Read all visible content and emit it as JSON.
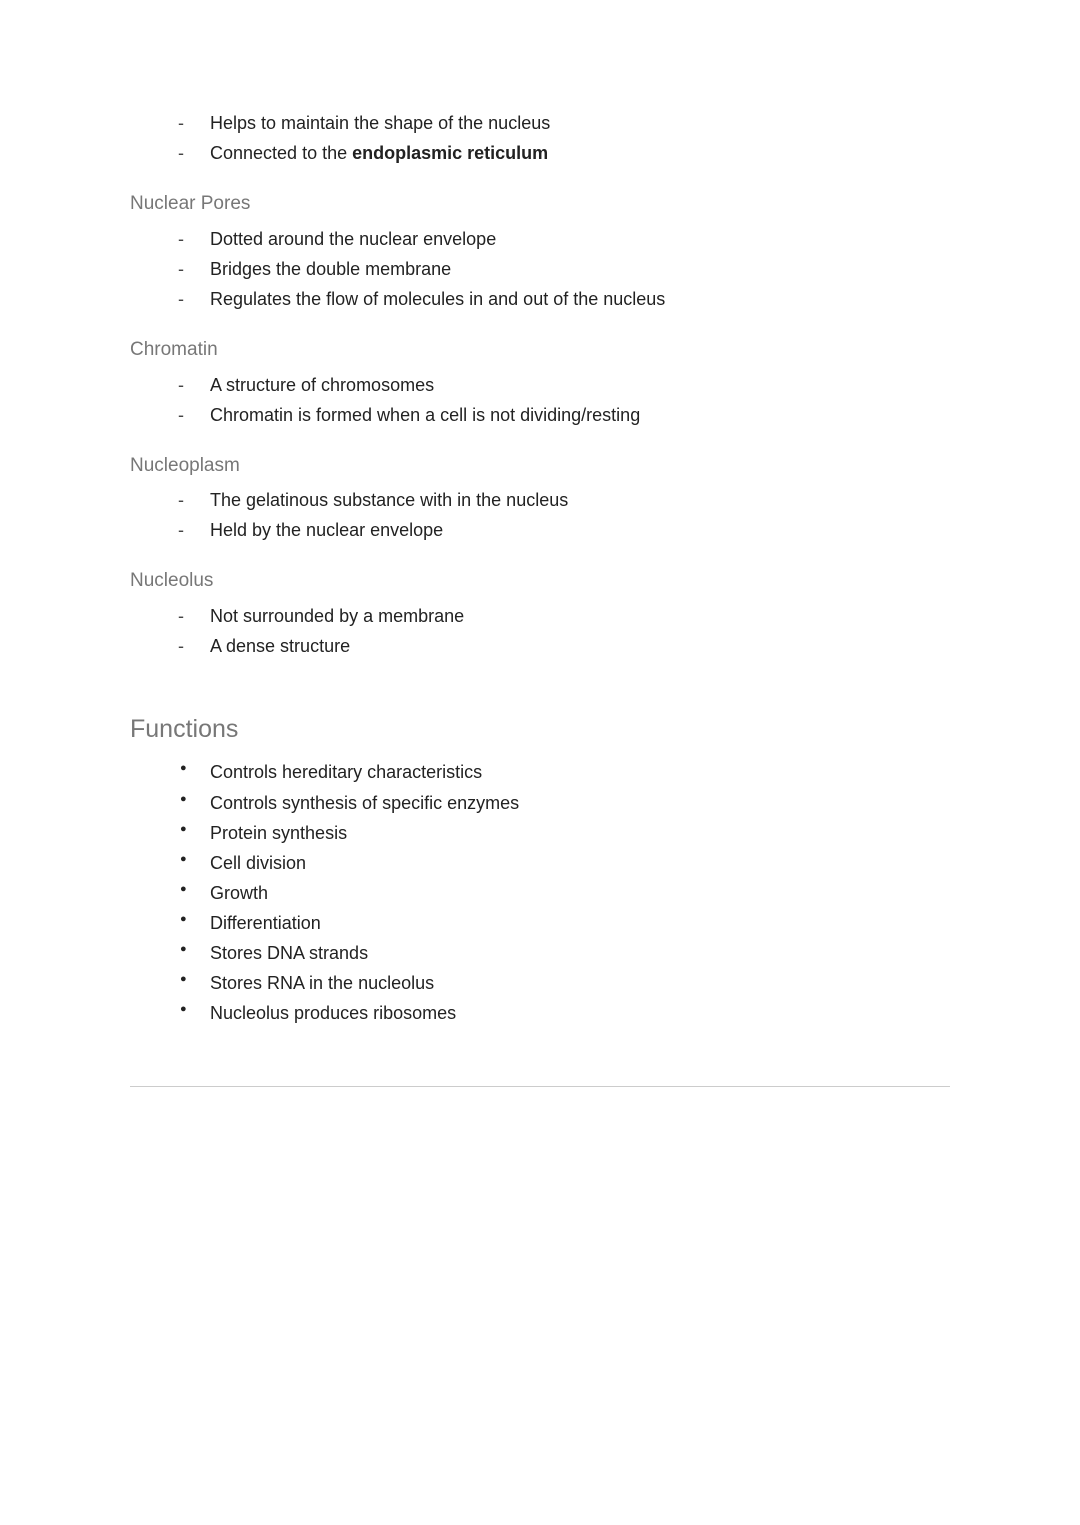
{
  "colors": {
    "background": "#ffffff",
    "body_text": "#222222",
    "subhead_text": "#777777",
    "section_text": "#777777",
    "rule": "#cccccc",
    "bullet": "#444444"
  },
  "typography": {
    "body_fontsize_pt": 13.5,
    "subhead_fontsize_pt": 14,
    "section_fontsize_pt": 19,
    "font_family": "Arial"
  },
  "nuclear_envelope_items": [
    {
      "text": "Helps to maintain the shape of the nucleus"
    },
    {
      "text_prefix": "Connected to the ",
      "bold_text": "endoplasmic reticulum"
    }
  ],
  "nuclear_pores": {
    "heading": "Nuclear Pores",
    "items": [
      "Dotted around the nuclear envelope",
      "Bridges the double membrane",
      "Regulates the flow of molecules in and out of the nucleus"
    ]
  },
  "chromatin": {
    "heading": "Chromatin",
    "items": [
      "A structure of chromosomes",
      "Chromatin is formed when a cell is not dividing/resting"
    ]
  },
  "nucleoplasm": {
    "heading": "Nucleoplasm",
    "items": [
      "The gelatinous substance with in the nucleus",
      "Held by the nuclear envelope"
    ]
  },
  "nucleolus": {
    "heading": "Nucleolus",
    "items": [
      "Not surrounded by a membrane",
      "A dense structure"
    ]
  },
  "functions": {
    "heading": "Functions",
    "items": [
      "Controls hereditary characteristics",
      "Controls synthesis of specific enzymes",
      "Protein synthesis",
      "Cell division",
      "Growth",
      "Differentiation",
      "Stores DNA strands",
      "Stores RNA in the nucleolus",
      "Nucleolus produces ribosomes"
    ]
  }
}
